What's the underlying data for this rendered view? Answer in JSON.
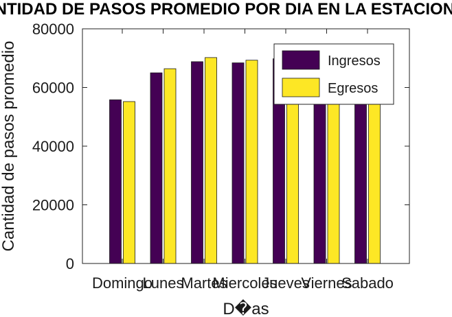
{
  "chart_data": {
    "type": "bar",
    "title": "CANTIDAD DE PASOS PROMEDIO POR DIA EN LA ESTACION",
    "xlabel": "D�as",
    "ylabel": "Cantidad de pasos promedio",
    "categories": [
      "Domingo",
      "Lunes",
      "Martes",
      "Miercoles",
      "Jueves",
      "Viernes",
      "Sabado"
    ],
    "series": [
      {
        "name": "Ingresos",
        "color": "#440154",
        "values": [
          55800,
          65000,
          68800,
          68400,
          69800,
          71000,
          71500
        ]
      },
      {
        "name": "Egresos",
        "color": "#fde725",
        "values": [
          55200,
          66400,
          70200,
          69300,
          70400,
          71500,
          71800
        ]
      }
    ],
    "ylim": [
      0,
      80000
    ],
    "yticks": [
      0,
      20000,
      40000,
      60000,
      80000
    ],
    "grid": false,
    "legend_position": "top-right"
  }
}
